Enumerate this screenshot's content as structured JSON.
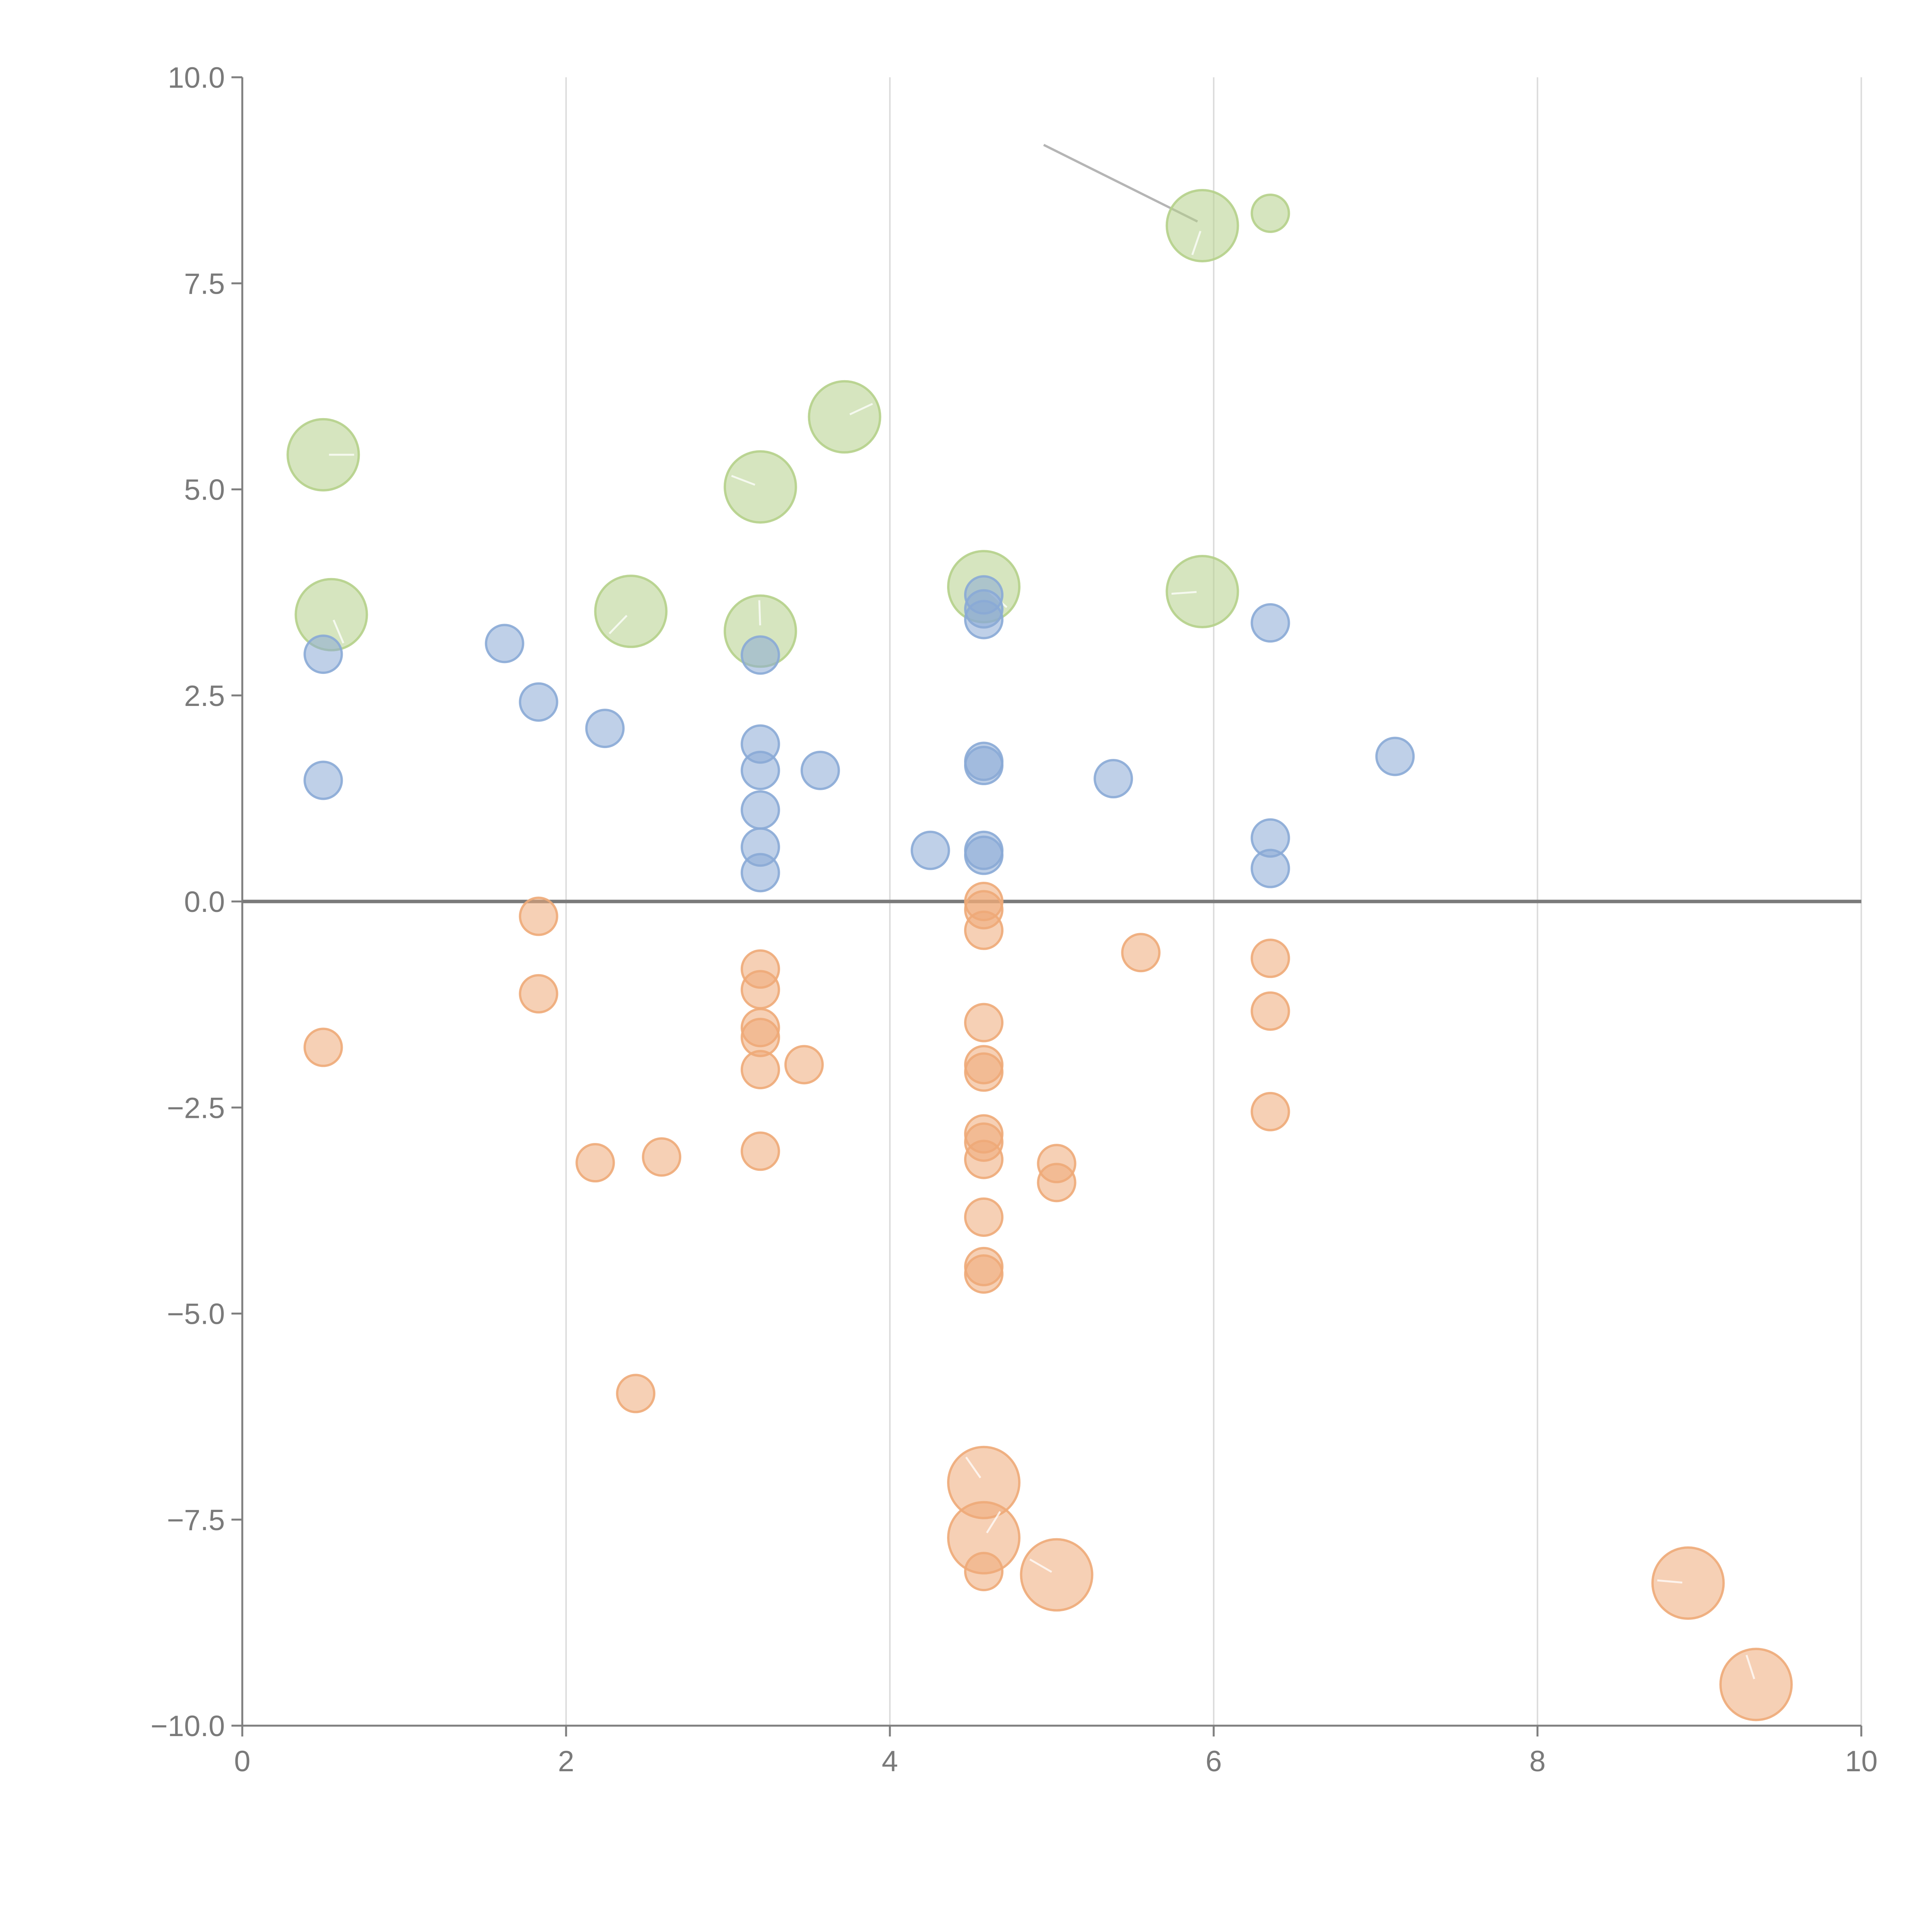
{
  "chart_data": {
    "type": "scatter",
    "title": "",
    "xlabel": "",
    "ylabel": "",
    "xlim": [
      0,
      10
    ],
    "ylim": [
      -10,
      10
    ],
    "x_ticks": [
      "0",
      "2",
      "4",
      "6",
      "8",
      "10"
    ],
    "x_tick_values": [
      0,
      2,
      4,
      6,
      8,
      10
    ],
    "y_ticks": [
      "10.0",
      "7.5",
      "5.0",
      "2.5",
      "0.0",
      "−2.5",
      "−5.0",
      "−7.5",
      "−10.0"
    ],
    "y_tick_values": [
      10,
      7.5,
      5,
      2.5,
      0,
      -2.5,
      -5,
      -7.5,
      -10
    ],
    "grid": "vertical",
    "zero_line": true,
    "legend": "none",
    "series": [
      {
        "name": "green",
        "color": "#b5d08a",
        "points": [
          {
            "x": 0.5,
            "y": 5.42,
            "size": 3
          },
          {
            "x": 0.55,
            "y": 3.48,
            "size": 3
          },
          {
            "x": 2.4,
            "y": 3.52,
            "size": 3
          },
          {
            "x": 3.2,
            "y": 5.03,
            "size": 3
          },
          {
            "x": 3.2,
            "y": 3.28,
            "size": 3
          },
          {
            "x": 3.72,
            "y": 5.88,
            "size": 3
          },
          {
            "x": 4.58,
            "y": 3.82,
            "size": 3
          },
          {
            "x": 5.93,
            "y": 8.2,
            "size": 3
          },
          {
            "x": 5.93,
            "y": 3.76,
            "size": 3
          },
          {
            "x": 6.35,
            "y": 8.35,
            "size": 1
          }
        ]
      },
      {
        "name": "blue",
        "color": "#8aaad6",
        "points": [
          {
            "x": 0.5,
            "y": 3.0,
            "size": 1
          },
          {
            "x": 0.5,
            "y": 1.47,
            "size": 1
          },
          {
            "x": 1.62,
            "y": 3.13,
            "size": 1
          },
          {
            "x": 1.83,
            "y": 2.42,
            "size": 1
          },
          {
            "x": 2.24,
            "y": 2.1,
            "size": 1
          },
          {
            "x": 3.2,
            "y": 2.99,
            "size": 1
          },
          {
            "x": 3.2,
            "y": 1.91,
            "size": 1
          },
          {
            "x": 3.2,
            "y": 1.59,
            "size": 1
          },
          {
            "x": 3.2,
            "y": 1.11,
            "size": 1
          },
          {
            "x": 3.2,
            "y": 0.66,
            "size": 1
          },
          {
            "x": 3.2,
            "y": 0.35,
            "size": 1
          },
          {
            "x": 3.57,
            "y": 1.59,
            "size": 1
          },
          {
            "x": 4.25,
            "y": 0.62,
            "size": 1
          },
          {
            "x": 4.58,
            "y": 3.72,
            "size": 1
          },
          {
            "x": 4.58,
            "y": 3.55,
            "size": 1
          },
          {
            "x": 4.58,
            "y": 3.42,
            "size": 1
          },
          {
            "x": 4.58,
            "y": 1.7,
            "size": 1
          },
          {
            "x": 4.58,
            "y": 1.65,
            "size": 1
          },
          {
            "x": 4.58,
            "y": 0.62,
            "size": 1
          },
          {
            "x": 4.58,
            "y": 0.56,
            "size": 1
          },
          {
            "x": 5.38,
            "y": 1.49,
            "size": 1
          },
          {
            "x": 6.35,
            "y": 3.38,
            "size": 1
          },
          {
            "x": 6.35,
            "y": 0.77,
            "size": 1
          },
          {
            "x": 6.35,
            "y": 0.4,
            "size": 1
          },
          {
            "x": 7.12,
            "y": 1.76,
            "size": 1
          }
        ]
      },
      {
        "name": "orange",
        "color": "#eeaa78",
        "points": [
          {
            "x": 0.5,
            "y": -1.77,
            "size": 1
          },
          {
            "x": 1.83,
            "y": -0.18,
            "size": 1
          },
          {
            "x": 1.83,
            "y": -1.12,
            "size": 1
          },
          {
            "x": 2.18,
            "y": -3.17,
            "size": 1
          },
          {
            "x": 2.43,
            "y": -5.97,
            "size": 1
          },
          {
            "x": 2.59,
            "y": -3.1,
            "size": 1
          },
          {
            "x": 3.2,
            "y": -0.82,
            "size": 1
          },
          {
            "x": 3.2,
            "y": -1.07,
            "size": 1
          },
          {
            "x": 3.2,
            "y": -1.53,
            "size": 1
          },
          {
            "x": 3.2,
            "y": -1.65,
            "size": 1
          },
          {
            "x": 3.2,
            "y": -2.04,
            "size": 1
          },
          {
            "x": 3.2,
            "y": -3.03,
            "size": 1
          },
          {
            "x": 3.47,
            "y": -1.98,
            "size": 1
          },
          {
            "x": 4.58,
            "y": 0.0,
            "size": 1
          },
          {
            "x": 4.58,
            "y": -0.1,
            "size": 1
          },
          {
            "x": 4.58,
            "y": -0.35,
            "size": 1
          },
          {
            "x": 4.58,
            "y": -1.47,
            "size": 1
          },
          {
            "x": 4.58,
            "y": -1.98,
            "size": 1
          },
          {
            "x": 4.58,
            "y": -2.07,
            "size": 1
          },
          {
            "x": 4.58,
            "y": -2.82,
            "size": 1
          },
          {
            "x": 4.58,
            "y": -2.92,
            "size": 1
          },
          {
            "x": 4.58,
            "y": -3.13,
            "size": 1
          },
          {
            "x": 4.58,
            "y": -3.83,
            "size": 1
          },
          {
            "x": 4.58,
            "y": -4.43,
            "size": 1
          },
          {
            "x": 4.58,
            "y": -4.52,
            "size": 1
          },
          {
            "x": 4.58,
            "y": -7.05,
            "size": 3
          },
          {
            "x": 4.58,
            "y": -7.72,
            "size": 3
          },
          {
            "x": 4.58,
            "y": -8.13,
            "size": 1
          },
          {
            "x": 5.03,
            "y": -3.18,
            "size": 1
          },
          {
            "x": 5.03,
            "y": -3.41,
            "size": 1
          },
          {
            "x": 5.03,
            "y": -8.17,
            "size": 3
          },
          {
            "x": 5.55,
            "y": -0.62,
            "size": 1
          },
          {
            "x": 6.35,
            "y": -0.69,
            "size": 1
          },
          {
            "x": 6.35,
            "y": -1.33,
            "size": 1
          },
          {
            "x": 6.35,
            "y": -2.55,
            "size": 1
          },
          {
            "x": 8.93,
            "y": -8.27,
            "size": 3
          },
          {
            "x": 9.35,
            "y": -9.5,
            "size": 3
          }
        ]
      }
    ],
    "leader_line": {
      "from": [
        4.95,
        9.18
      ],
      "to": [
        5.9,
        8.25
      ]
    }
  }
}
